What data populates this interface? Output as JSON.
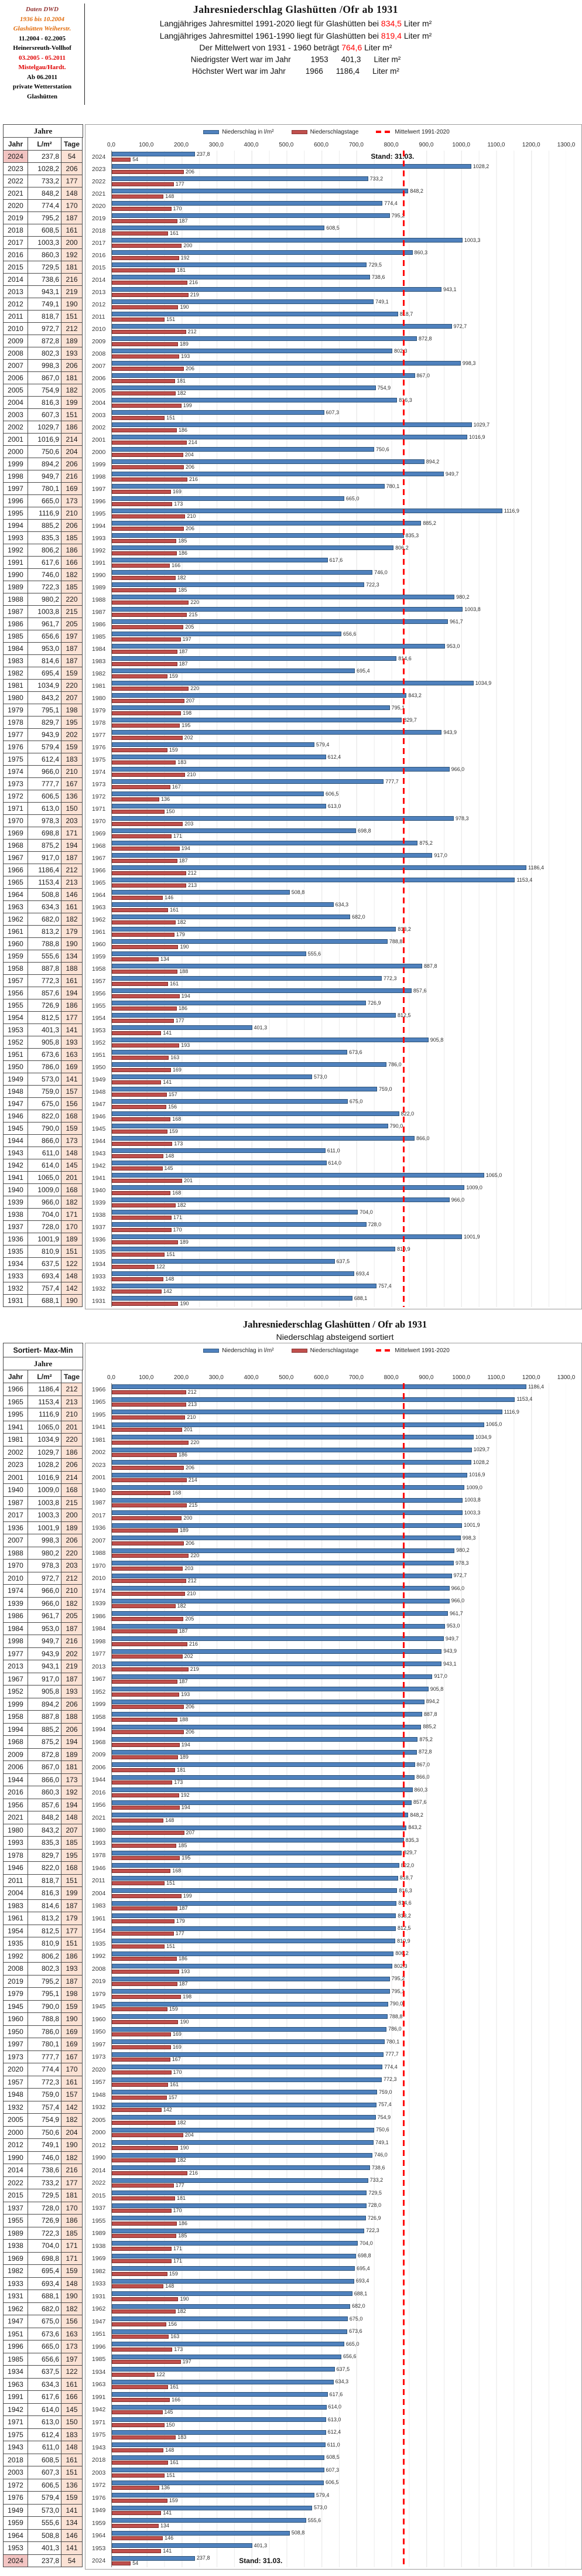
{
  "info_box": {
    "lines": [
      {
        "text": "Daten DWD",
        "color": "#953735"
      },
      {
        "text": "1936 bis 10.2004",
        "color": "#e26b0a"
      },
      {
        "text": "Glashütten Weiherstr.",
        "color": "#e26b0a"
      },
      {
        "text": "11.2004 - 02.2005",
        "color": "#000000"
      },
      {
        "text": "Heinersreuth-Vollhof",
        "color": "#000000"
      },
      {
        "text": "03.2005 - 05.2011",
        "color": "#e00000"
      },
      {
        "text": "Mistelgau/Hardt.",
        "color": "#e00000"
      },
      {
        "text": "Ab 06.2011",
        "color": "#000000"
      },
      {
        "text": "private Wetterstation",
        "color": "#000000"
      },
      {
        "text": "Glashütten",
        "color": "#000000"
      }
    ]
  },
  "header": {
    "title": "Jahresniederschlag  Glashütten /Ofr  ab  1931",
    "lines": [
      {
        "pre": "Langjähriges Jahresmittel 1991-2020 liegt für Glashütten bei ",
        "value": "834,5",
        "post": " Liter m²"
      },
      {
        "pre": "Langjähriges Jahresmittel 1961-1990 liegt für Glashütten bei ",
        "value": "819,4",
        "post": " Liter m²"
      },
      {
        "pre": "Der Mittelwert von  1931 - 1960   beträgt  ",
        "value": "764,6",
        "post": " Liter m²"
      }
    ],
    "extremes": [
      {
        "label": "Niedrigster Wert war im Jahr",
        "year": "1953",
        "value": "401,3",
        "unit": "Liter m²"
      },
      {
        "label": "Höchster Wert war im Jahr",
        "year": "1966",
        "value": "1186,4",
        "unit": "Liter m²"
      }
    ]
  },
  "legend": {
    "precip": "Niederschlag in l/m²",
    "days": "Niederschlagstage",
    "mean": "Mittelwert 1991-2020"
  },
  "table": {
    "sort_label": "Sortiert- Max-Min",
    "group_header": "Jahre",
    "columns": [
      "Jahr",
      "L/m²",
      "Tage"
    ]
  },
  "chart2_header": {
    "title": "Jahresniederschlag Glashütten / Ofr ab 1931",
    "subtitle": "Niederschlag absteigend sortiert"
  },
  "colors": {
    "precip_bar": "#4f81bd",
    "days_bar": "#c0504d",
    "mean_line": "#ff0000",
    "days_cell_bg": "#fbe2d5",
    "year2024_cell_bg": "#f2c4c2"
  },
  "chart_data": [
    {
      "type": "bar",
      "orientation": "horizontal",
      "title": "Jahresniederschlag Glashütten /Ofr ab 1931",
      "xlim": [
        0,
        1300
      ],
      "x_ticks": [
        "0,0",
        "100,0",
        "200,0",
        "300,0",
        "400,0",
        "500,0",
        "600,0",
        "700,0",
        "800,0",
        "900,0",
        "1000,0",
        "1100,0",
        "1200,0",
        "1300,0"
      ],
      "grid": true,
      "legend_position": "top",
      "mean_line": {
        "label": "Mittelwert 1991-2020",
        "value": 834.5
      },
      "annotation": {
        "text": "Stand: 31.03.",
        "row_year": 2024
      },
      "categories": [
        2024,
        2023,
        2022,
        2021,
        2020,
        2019,
        2018,
        2017,
        2016,
        2015,
        2014,
        2013,
        2012,
        2011,
        2010,
        2009,
        2008,
        2007,
        2006,
        2005,
        2004,
        2003,
        2002,
        2001,
        2000,
        1999,
        1998,
        1997,
        1996,
        1995,
        1994,
        1993,
        1992,
        1991,
        1990,
        1989,
        1988,
        1987,
        1986,
        1985,
        1984,
        1983,
        1982,
        1981,
        1980,
        1979,
        1978,
        1977,
        1976,
        1975,
        1974,
        1973,
        1972,
        1971,
        1970,
        1969,
        1968,
        1967,
        1966,
        1965,
        1964,
        1963,
        1962,
        1961,
        1960,
        1959,
        1958,
        1957,
        1956,
        1955,
        1954,
        1953,
        1952,
        1951,
        1950,
        1949,
        1948,
        1947,
        1946,
        1945,
        1944,
        1943,
        1942,
        1941,
        1940,
        1939,
        1938,
        1937,
        1936,
        1935,
        1934,
        1933,
        1932,
        1931
      ],
      "series": [
        {
          "name": "Niederschlag in l/m²",
          "values": [
            237.8,
            1028.2,
            733.2,
            848.2,
            774.4,
            795.2,
            608.5,
            1003.3,
            860.3,
            729.5,
            738.6,
            943.1,
            749.1,
            818.7,
            972.7,
            872.8,
            802.3,
            998.3,
            867.0,
            754.9,
            816.3,
            607.3,
            1029.7,
            1016.9,
            750.6,
            894.2,
            949.7,
            780.1,
            665.0,
            1116.9,
            885.2,
            835.3,
            806.2,
            617.6,
            746.0,
            722.3,
            980.2,
            1003.8,
            961.7,
            656.6,
            953.0,
            814.6,
            695.4,
            1034.9,
            843.2,
            795.1,
            829.7,
            943.9,
            579.4,
            612.4,
            966.0,
            777.7,
            606.5,
            613.0,
            978.3,
            698.8,
            875.2,
            917.0,
            1186.4,
            1153.4,
            508.8,
            634.3,
            682.0,
            813.2,
            788.8,
            555.6,
            887.8,
            772.3,
            857.6,
            726.9,
            812.5,
            401.3,
            905.8,
            673.6,
            786.0,
            573.0,
            759.0,
            675.0,
            822.0,
            790.0,
            866.0,
            611.0,
            614.0,
            1065.0,
            1009.0,
            966.0,
            704.0,
            728.0,
            1001.9,
            810.9,
            637.5,
            693.4,
            757.4,
            688.1
          ]
        },
        {
          "name": "Niederschlagstage",
          "values": [
            54,
            206,
            177,
            148,
            170,
            187,
            161,
            200,
            192,
            181,
            216,
            219,
            190,
            151,
            212,
            189,
            193,
            206,
            181,
            182,
            199,
            151,
            186,
            214,
            204,
            206,
            216,
            169,
            173,
            210,
            206,
            185,
            186,
            166,
            182,
            185,
            220,
            215,
            205,
            197,
            187,
            187,
            159,
            220,
            207,
            198,
            195,
            202,
            159,
            183,
            210,
            167,
            136,
            150,
            203,
            171,
            194,
            187,
            212,
            213,
            146,
            161,
            182,
            179,
            190,
            134,
            188,
            161,
            194,
            186,
            177,
            141,
            193,
            163,
            169,
            141,
            157,
            156,
            168,
            159,
            173,
            148,
            145,
            201,
            168,
            182,
            171,
            170,
            189,
            151,
            122,
            148,
            142,
            190
          ]
        }
      ]
    },
    {
      "type": "bar",
      "orientation": "horizontal",
      "title": "Jahresniederschlag Glashütten / Ofr ab 1931",
      "subtitle": "Niederschlag absteigend sortiert",
      "xlim": [
        0,
        1300
      ],
      "x_ticks": [
        "0,0",
        "100,0",
        "200,0",
        "300,0",
        "400,0",
        "500,0",
        "600,0",
        "700,0",
        "800,0",
        "900,0",
        "1000,0",
        "1100,0",
        "1200,0",
        "1300,0"
      ],
      "grid": true,
      "legend_position": "top",
      "mean_line": {
        "label": "Mittelwert 1991-2020",
        "value": 834.5
      },
      "annotation": {
        "text": "Stand: 31.03.",
        "row_year": 2024
      },
      "categories": [
        1966,
        1965,
        1995,
        1941,
        1981,
        2002,
        2023,
        2001,
        1940,
        1987,
        2017,
        1936,
        2007,
        1988,
        1970,
        2010,
        1974,
        1939,
        1986,
        1984,
        1998,
        1977,
        2013,
        1967,
        1952,
        1999,
        1958,
        1994,
        1968,
        2009,
        2006,
        1944,
        2016,
        1956,
        2021,
        1980,
        1993,
        1978,
        1946,
        2011,
        2004,
        1983,
        1961,
        1954,
        1935,
        1992,
        2008,
        2019,
        1979,
        1945,
        1960,
        1950,
        1997,
        1973,
        2020,
        1957,
        1948,
        1932,
        2005,
        2000,
        2012,
        1990,
        2014,
        2022,
        2015,
        1937,
        1955,
        1989,
        1938,
        1969,
        1982,
        1933,
        1931,
        1962,
        1947,
        1951,
        1996,
        1985,
        1934,
        1963,
        1991,
        1942,
        1971,
        1975,
        1943,
        2018,
        2003,
        1972,
        1976,
        1949,
        1959,
        1964,
        1953,
        2024
      ],
      "series": [
        {
          "name": "Niederschlag in l/m²",
          "values": [
            1186.4,
            1153.4,
            1116.9,
            1065.0,
            1034.9,
            1029.7,
            1028.2,
            1016.9,
            1009.0,
            1003.8,
            1003.3,
            1001.9,
            998.3,
            980.2,
            978.3,
            972.7,
            966.0,
            966.0,
            961.7,
            953.0,
            949.7,
            943.9,
            943.1,
            917.0,
            905.8,
            894.2,
            887.8,
            885.2,
            875.2,
            872.8,
            867.0,
            866.0,
            860.3,
            857.6,
            848.2,
            843.2,
            835.3,
            829.7,
            822.0,
            818.7,
            816.3,
            814.6,
            813.2,
            812.5,
            810.9,
            806.2,
            802.3,
            795.2,
            795.1,
            790.0,
            788.8,
            786.0,
            780.1,
            777.7,
            774.4,
            772.3,
            759.0,
            757.4,
            754.9,
            750.6,
            749.1,
            746.0,
            738.6,
            733.2,
            729.5,
            728.0,
            726.9,
            722.3,
            704.0,
            698.8,
            695.4,
            693.4,
            688.1,
            682.0,
            675.0,
            673.6,
            665.0,
            656.6,
            637.5,
            634.3,
            617.6,
            614.0,
            613.0,
            612.4,
            611.0,
            608.5,
            607.3,
            606.5,
            579.4,
            573.0,
            555.6,
            508.8,
            401.3,
            237.8
          ]
        },
        {
          "name": "Niederschlagstage",
          "values": [
            212,
            213,
            210,
            201,
            220,
            186,
            206,
            214,
            168,
            215,
            200,
            189,
            206,
            220,
            203,
            212,
            210,
            182,
            205,
            187,
            216,
            202,
            219,
            187,
            193,
            206,
            188,
            206,
            194,
            189,
            181,
            173,
            192,
            194,
            148,
            207,
            185,
            195,
            168,
            151,
            199,
            187,
            179,
            177,
            151,
            186,
            193,
            187,
            198,
            159,
            190,
            169,
            169,
            167,
            170,
            161,
            157,
            142,
            182,
            204,
            190,
            182,
            216,
            177,
            181,
            170,
            186,
            185,
            171,
            171,
            159,
            148,
            190,
            182,
            156,
            163,
            173,
            197,
            122,
            161,
            166,
            145,
            150,
            183,
            148,
            161,
            151,
            136,
            159,
            141,
            134,
            146,
            141,
            54
          ]
        }
      ]
    }
  ]
}
